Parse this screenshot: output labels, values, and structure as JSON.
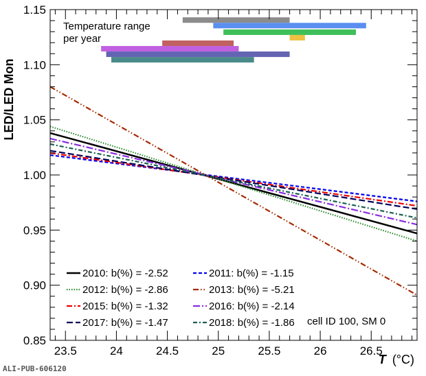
{
  "chart_data": {
    "type": "line",
    "xlabel": "T (°C)",
    "xlabel_var": "T",
    "xlabel_unit": "(°C)",
    "ylabel": "LED/LED Mon",
    "xlim": [
      23.35,
      26.95
    ],
    "ylim": [
      0.85,
      1.15
    ],
    "x_ticks": [
      23.5,
      24,
      24.5,
      25,
      25.5,
      26,
      26.5
    ],
    "x_tick_labels": [
      "23.5",
      "24",
      "24.5",
      "25",
      "25.5",
      "26",
      "26.5"
    ],
    "y_ticks": [
      0.85,
      0.9,
      0.95,
      1.0,
      1.05,
      1.1,
      1.15
    ],
    "y_tick_labels": [
      "0.85",
      "0.90",
      "0.95",
      "1.00",
      "1.05",
      "1.10",
      "1.15"
    ],
    "pivot_x": 24.88,
    "series": [
      {
        "name": "2010: b(%) = -2.52",
        "slope_percent": -2.52,
        "x": [
          23.35,
          26.95
        ],
        "y": [
          1.038,
          0.947
        ],
        "color": "#000000",
        "style": "solid"
      },
      {
        "name": "2011: b(%) = -1.15",
        "slope_percent": -1.15,
        "x": [
          23.35,
          26.95
        ],
        "y": [
          1.018,
          0.976
        ],
        "color": "#0000ee",
        "style": "dashed"
      },
      {
        "name": "2012: b(%) = -2.86",
        "slope_percent": -2.86,
        "x": [
          23.35,
          26.95
        ],
        "y": [
          1.044,
          0.94
        ],
        "color": "#2e8b2e",
        "style": "dotted"
      },
      {
        "name": "2013: b(%) = -5.21",
        "slope_percent": -5.21,
        "x": [
          23.35,
          26.95
        ],
        "y": [
          1.08,
          0.891
        ],
        "color": "#a52a00",
        "style": "dashdotdot"
      },
      {
        "name": "2015: b(%) = -1.32",
        "slope_percent": -1.32,
        "x": [
          23.35,
          26.95
        ],
        "y": [
          1.02,
          0.972
        ],
        "color": "#ee0000",
        "style": "dashdot"
      },
      {
        "name": "2016: b(%) = -2.14",
        "slope_percent": -2.14,
        "x": [
          23.35,
          26.95
        ],
        "y": [
          1.033,
          0.955
        ],
        "color": "#8a2be2",
        "style": "dashdot2"
      },
      {
        "name": "2017: b(%) = -1.47",
        "slope_percent": -1.47,
        "x": [
          23.35,
          26.95
        ],
        "y": [
          1.022,
          0.969
        ],
        "color": "#00005a",
        "style": "dashed-long"
      },
      {
        "name": "2018: b(%) = -1.86",
        "slope_percent": -1.86,
        "x": [
          23.35,
          26.95
        ],
        "y": [
          1.028,
          0.961
        ],
        "color": "#1a5e50",
        "style": "dashdot3"
      }
    ],
    "temperature_ranges": [
      {
        "xmin": 24.65,
        "xmax": 25.7,
        "y": 1.1405,
        "color": "#8c8c8c"
      },
      {
        "xmin": 24.95,
        "xmax": 26.45,
        "y": 1.1355,
        "color": "#5a8ff0"
      },
      {
        "xmin": 25.05,
        "xmax": 26.35,
        "y": 1.1295,
        "color": "#3fbf5a"
      },
      {
        "xmin": 25.7,
        "xmax": 25.85,
        "y": 1.1245,
        "color": "#f0c040"
      },
      {
        "xmin": 24.45,
        "xmax": 25.15,
        "y": 1.1195,
        "color": "#c06060"
      },
      {
        "xmin": 23.85,
        "xmax": 25.2,
        "y": 1.1145,
        "color": "#c060e0"
      },
      {
        "xmin": 23.9,
        "xmax": 25.7,
        "y": 1.1095,
        "color": "#6464b4"
      },
      {
        "xmin": 23.95,
        "xmax": 25.35,
        "y": 1.1045,
        "color": "#4a8a8a"
      }
    ],
    "annotations": {
      "range_title_line1": "Temperature range",
      "range_title_line2": "per year",
      "cell_label": "cell ID 100, SM 0"
    },
    "legend_position": "bottom-left"
  },
  "footer": "ALI-PUB-606120"
}
